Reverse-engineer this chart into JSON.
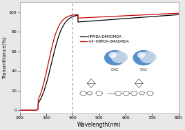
{
  "xlabel": "Wavelength(nm)",
  "ylabel": "Transmittance(%)",
  "xlim": [
    200,
    800
  ],
  "ylim": [
    -3,
    110
  ],
  "yticks": [
    0,
    20,
    40,
    60,
    80,
    100
  ],
  "xticks": [
    200,
    300,
    400,
    500,
    600,
    700,
    800
  ],
  "vline_x": 400,
  "legend_labels": [
    "HPMDA-DMADMDA",
    "4,4'-HBPDA-DMADMDA"
  ],
  "line_colors": [
    "#000000",
    "#cc0000"
  ],
  "background_color": "#e8e8e8",
  "plot_bg": "#ffffff"
}
